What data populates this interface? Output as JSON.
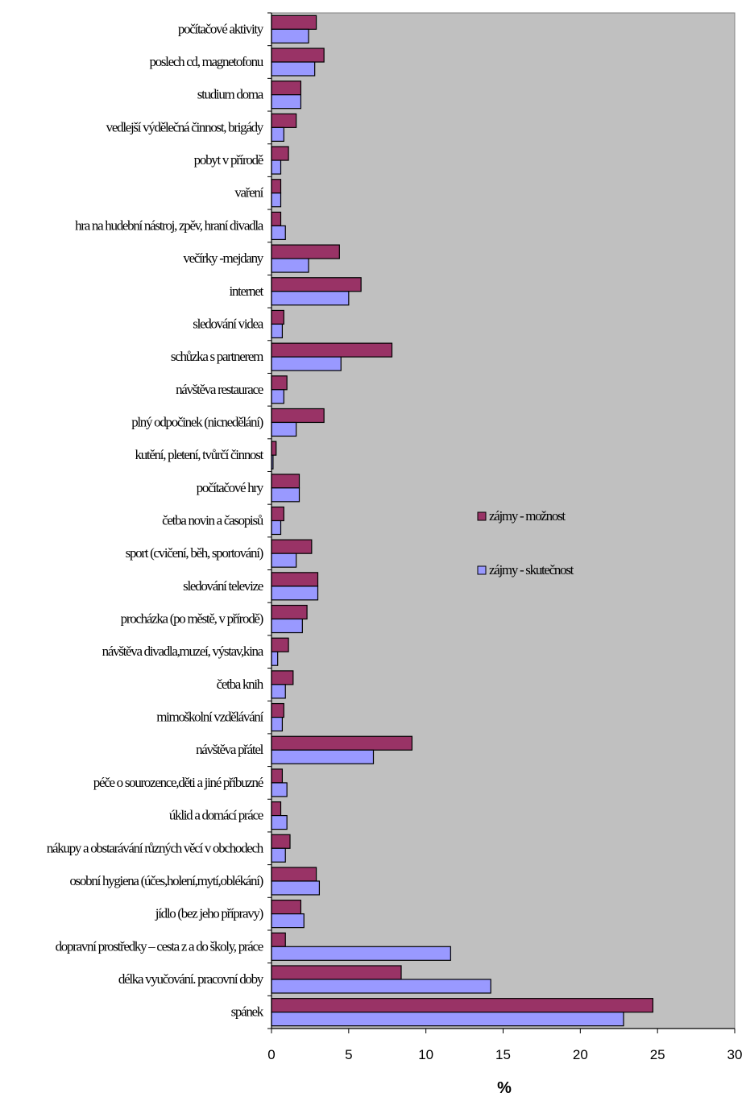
{
  "chart_data": {
    "type": "bar",
    "orientation": "horizontal",
    "categories": [
      "počítačové aktivity",
      "poslech cd, magnetofonu",
      "studium doma",
      "vedlejší výdělečná činnost, brigády",
      "pobyt v přírodě",
      "vaření",
      "hra na hudební nástroj, zpěv, hraní divadla",
      "večírky -mejdany",
      "internet",
      "sledování videa",
      "schůzka s partnerem",
      "návštěva restaurace",
      "plný odpočinek (nicnedělání)",
      "kutění, pletení, tvůrčí činnost",
      "počítačové hry",
      "četba novin a časopisů",
      "sport (cvičení, běh, sportování)",
      "sledování televize",
      "procházka (po městě, v přírodě)",
      "návštěva divadla,muzeí, výstav,kina",
      "četba knih",
      "mimoškolní vzdělávání",
      "návštěva přátel",
      "péče o sourozence,děti a jiné příbuzné",
      "úklid a domácí práce",
      "nákupy a obstarávání různých věcí v obchodech",
      "osobní hygiena (účes,holení,mytí,oblékání)",
      "jídlo (bez jeho přípravy)",
      "dopravní prostředky – cesta z a do školy, práce",
      "délka vyučování. pracovní doby",
      "spánek"
    ],
    "series": [
      {
        "name": "zájmy - možnost",
        "color": "#993366",
        "values": [
          2.9,
          3.4,
          1.9,
          1.6,
          1.1,
          0.6,
          0.6,
          4.4,
          5.8,
          0.8,
          7.8,
          1.0,
          3.4,
          0.3,
          1.8,
          0.8,
          2.6,
          3.0,
          2.3,
          1.1,
          1.4,
          0.8,
          9.1,
          0.7,
          0.6,
          1.2,
          2.9,
          1.9,
          0.9,
          8.4,
          24.7
        ]
      },
      {
        "name": "zájmy - skutečnost",
        "color": "#9999ff",
        "values": [
          2.4,
          2.8,
          1.9,
          0.8,
          0.6,
          0.6,
          0.9,
          2.4,
          5.0,
          0.7,
          4.5,
          0.8,
          1.6,
          0.1,
          1.8,
          0.6,
          1.6,
          3.0,
          2.0,
          0.4,
          0.9,
          0.7,
          6.6,
          1.0,
          1.0,
          0.9,
          3.1,
          2.1,
          11.6,
          14.2,
          22.8
        ]
      }
    ],
    "xlim": [
      0,
      30
    ],
    "xticks": [
      "0",
      "5",
      "10",
      "15",
      "20",
      "25",
      "30"
    ],
    "xlabel": "%",
    "plot_background": "#c0c0c0",
    "legend_position": "right"
  }
}
